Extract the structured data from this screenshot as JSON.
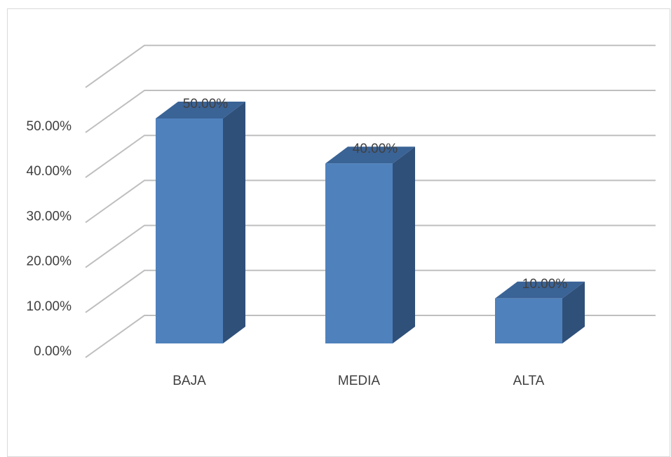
{
  "chart_data": {
    "type": "bar",
    "style": "3d-column",
    "categories": [
      "BAJA",
      "MEDIA",
      "ALTA"
    ],
    "values": [
      50.0,
      40.0,
      10.0
    ],
    "data_labels": [
      "50.00%",
      "40.00%",
      "10.00%"
    ],
    "ylim": [
      0,
      60
    ],
    "y_ticks": [
      0,
      10,
      20,
      30,
      40,
      50
    ],
    "y_tick_labels": [
      "0.00%",
      "10.00%",
      "20.00%",
      "30.00%",
      "40.00%",
      "50.00%"
    ],
    "grid": true,
    "legend": "none",
    "colors": {
      "bar_front": "#4f81bd",
      "bar_side": "#2f5079",
      "bar_top": "#3a6396",
      "grid": "#bfbfbf"
    }
  }
}
